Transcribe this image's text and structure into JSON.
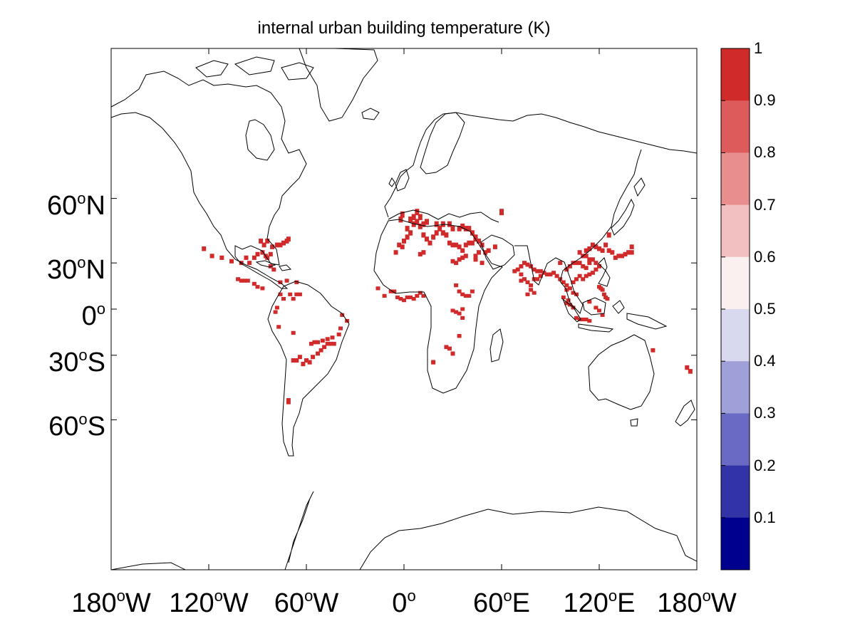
{
  "chart_data": {
    "type": "heatmap",
    "title": "internal urban building temperature (K)",
    "projection": "mercator",
    "xlim": [
      -180,
      180
    ],
    "ylim": [
      -80,
      80
    ],
    "y_ticks": [
      {
        "lat": 60,
        "num": "60",
        "sup": "o",
        "hemi": "N"
      },
      {
        "lat": 30,
        "num": "30",
        "sup": "o",
        "hemi": "N"
      },
      {
        "lat": 0,
        "num": "0",
        "sup": "o",
        "hemi": ""
      },
      {
        "lat": -30,
        "num": "30",
        "sup": "o",
        "hemi": "S"
      },
      {
        "lat": -60,
        "num": "60",
        "sup": "o",
        "hemi": "S"
      }
    ],
    "x_ticks": [
      {
        "lon": -180,
        "num": "180",
        "sup": "o",
        "hemi": "W"
      },
      {
        "lon": -120,
        "num": "120",
        "sup": "o",
        "hemi": "W"
      },
      {
        "lon": -60,
        "num": "60",
        "sup": "o",
        "hemi": "W"
      },
      {
        "lon": 0,
        "num": "0",
        "sup": "o",
        "hemi": ""
      },
      {
        "lon": 60,
        "num": "60",
        "sup": "o",
        "hemi": "E"
      },
      {
        "lon": 120,
        "num": "120",
        "sup": "o",
        "hemi": "E"
      },
      {
        "lon": 180,
        "num": "180",
        "sup": "o",
        "hemi": "W"
      }
    ],
    "colorbar": {
      "range": [
        0,
        1
      ],
      "tick_labels": [
        "1",
        "0.9",
        "0.8",
        "0.7",
        "0.6",
        "0.5",
        "0.4",
        "0.3",
        "0.2",
        "0.1"
      ],
      "tick_values": [
        1,
        0.9,
        0.8,
        0.7,
        0.6,
        0.5,
        0.4,
        0.3,
        0.2,
        0.1
      ],
      "colors_top_to_bottom": [
        "#d02a2a",
        "#dd5b5b",
        "#e88e8e",
        "#f2c0c0",
        "#fbf0f0",
        "#d8d8ee",
        "#a0a0d8",
        "#6a6ac4",
        "#3333a8",
        "#00008f"
      ]
    },
    "cell_value": 1,
    "cell_color": "#d02a2a",
    "coast_color": "#000000",
    "urban_cells_lonlat": [
      [
        -123,
        38
      ],
      [
        -118,
        34
      ],
      [
        -112,
        33
      ],
      [
        -106,
        31
      ],
      [
        -100,
        30
      ],
      [
        -97,
        33
      ],
      [
        -95,
        30
      ],
      [
        -92,
        33
      ],
      [
        -90,
        35
      ],
      [
        -87,
        36
      ],
      [
        -85,
        34
      ],
      [
        -84,
        33
      ],
      [
        -82,
        35
      ],
      [
        -81,
        39
      ],
      [
        -78,
        40
      ],
      [
        -76,
        40
      ],
      [
        -74,
        41
      ],
      [
        -72,
        42
      ],
      [
        -71,
        43
      ],
      [
        -88,
        42
      ],
      [
        -86,
        40
      ],
      [
        -84,
        42
      ],
      [
        -80,
        26
      ],
      [
        -82,
        28
      ],
      [
        -102,
        20
      ],
      [
        -100,
        19
      ],
      [
        -98,
        19
      ],
      [
        -96,
        19
      ],
      [
        -92,
        17
      ],
      [
        -90,
        15
      ],
      [
        -87,
        14
      ],
      [
        -76,
        18
      ],
      [
        -72,
        19
      ],
      [
        -66,
        18
      ],
      [
        -76,
        10
      ],
      [
        -74,
        7
      ],
      [
        -70,
        10
      ],
      [
        -66,
        10
      ],
      [
        -64,
        10
      ],
      [
        -68,
        7
      ],
      [
        -78,
        1
      ],
      [
        -79,
        -2
      ],
      [
        -77,
        -12
      ],
      [
        -68,
        -16
      ],
      [
        -57,
        -23
      ],
      [
        -55,
        -22
      ],
      [
        -53,
        -22
      ],
      [
        -50,
        -21
      ],
      [
        -47,
        -23
      ],
      [
        -45,
        -23
      ],
      [
        -43,
        -23
      ],
      [
        -49,
        -25
      ],
      [
        -51,
        -27
      ],
      [
        -53,
        -29
      ],
      [
        -56,
        -31
      ],
      [
        -58,
        -34
      ],
      [
        -60,
        -33
      ],
      [
        -62,
        -35
      ],
      [
        -64,
        -31
      ],
      [
        -66,
        -33
      ],
      [
        -68,
        -33
      ],
      [
        -47,
        -20
      ],
      [
        -44,
        -19
      ],
      [
        -40,
        -17
      ],
      [
        -39,
        -13
      ],
      [
        -35,
        -8
      ],
      [
        -38,
        -4
      ],
      [
        -71,
        -53
      ],
      [
        -5,
        36
      ],
      [
        -3,
        40
      ],
      [
        -1,
        39
      ],
      [
        0,
        42
      ],
      [
        2,
        44
      ],
      [
        2,
        48
      ],
      [
        4,
        46
      ],
      [
        6,
        50
      ],
      [
        8,
        51
      ],
      [
        10,
        49
      ],
      [
        12,
        50
      ],
      [
        14,
        51
      ],
      [
        10,
        53
      ],
      [
        6,
        53
      ],
      [
        8,
        55
      ],
      [
        4,
        52
      ],
      [
        -2,
        52
      ],
      [
        -1,
        54
      ],
      [
        12,
        45
      ],
      [
        14,
        43
      ],
      [
        16,
        41
      ],
      [
        18,
        44
      ],
      [
        20,
        46
      ],
      [
        22,
        48
      ],
      [
        24,
        46
      ],
      [
        26,
        45
      ],
      [
        28,
        41
      ],
      [
        30,
        40
      ],
      [
        32,
        40
      ],
      [
        34,
        39
      ],
      [
        36,
        37
      ],
      [
        38,
        40
      ],
      [
        40,
        41
      ],
      [
        42,
        41
      ],
      [
        44,
        43
      ],
      [
        20,
        50
      ],
      [
        24,
        50
      ],
      [
        28,
        50
      ],
      [
        30,
        48
      ],
      [
        34,
        48
      ],
      [
        36,
        49
      ],
      [
        38,
        48
      ],
      [
        40,
        48
      ],
      [
        42,
        46
      ],
      [
        44,
        44
      ],
      [
        46,
        42
      ],
      [
        48,
        40
      ],
      [
        46,
        36
      ],
      [
        44,
        34
      ],
      [
        50,
        36
      ],
      [
        52,
        37
      ],
      [
        56,
        39
      ],
      [
        30,
        31
      ],
      [
        32,
        30
      ],
      [
        34,
        32
      ],
      [
        36,
        33
      ],
      [
        38,
        34
      ],
      [
        44,
        32
      ],
      [
        48,
        30
      ],
      [
        60,
        55
      ],
      [
        10,
        35
      ],
      [
        12,
        36
      ],
      [
        -8,
        12
      ],
      [
        -6,
        12
      ],
      [
        -4,
        8
      ],
      [
        -2,
        7
      ],
      [
        0,
        6
      ],
      [
        2,
        8
      ],
      [
        4,
        8
      ],
      [
        6,
        7
      ],
      [
        8,
        9
      ],
      [
        10,
        11
      ],
      [
        12,
        9
      ],
      [
        -12,
        9
      ],
      [
        -16,
        14
      ],
      [
        32,
        16
      ],
      [
        34,
        12
      ],
      [
        36,
        10
      ],
      [
        38,
        9
      ],
      [
        40,
        9
      ],
      [
        42,
        12
      ],
      [
        30,
        -1
      ],
      [
        32,
        -2
      ],
      [
        34,
        -3
      ],
      [
        36,
        0
      ],
      [
        36,
        -6
      ],
      [
        34,
        -18
      ],
      [
        26,
        -25
      ],
      [
        28,
        -26
      ],
      [
        30,
        -29
      ],
      [
        18,
        -34
      ],
      [
        68,
        25
      ],
      [
        70,
        26
      ],
      [
        72,
        28
      ],
      [
        74,
        30
      ],
      [
        76,
        29
      ],
      [
        78,
        28
      ],
      [
        80,
        26
      ],
      [
        82,
        25
      ],
      [
        84,
        25
      ],
      [
        86,
        24
      ],
      [
        88,
        23
      ],
      [
        90,
        23
      ],
      [
        72,
        23
      ],
      [
        74,
        20
      ],
      [
        76,
        18
      ],
      [
        78,
        16
      ],
      [
        78,
        13
      ],
      [
        80,
        11
      ],
      [
        76,
        10
      ],
      [
        72,
        19
      ],
      [
        80,
        20
      ],
      [
        82,
        20
      ],
      [
        84,
        22
      ],
      [
        92,
        24
      ],
      [
        94,
        22
      ],
      [
        96,
        20
      ],
      [
        98,
        18
      ],
      [
        100,
        16
      ],
      [
        102,
        14
      ],
      [
        104,
        11
      ],
      [
        106,
        10
      ],
      [
        100,
        13
      ],
      [
        104,
        18
      ],
      [
        106,
        20
      ],
      [
        108,
        22
      ],
      [
        110,
        20
      ],
      [
        112,
        22
      ],
      [
        114,
        23
      ],
      [
        116,
        24
      ],
      [
        118,
        26
      ],
      [
        120,
        28
      ],
      [
        118,
        30
      ],
      [
        116,
        32
      ],
      [
        114,
        32
      ],
      [
        112,
        34
      ],
      [
        110,
        34
      ],
      [
        108,
        30
      ],
      [
        106,
        30
      ],
      [
        104,
        30
      ],
      [
        102,
        28
      ],
      [
        100,
        26
      ],
      [
        108,
        36
      ],
      [
        112,
        37
      ],
      [
        114,
        38
      ],
      [
        116,
        40
      ],
      [
        118,
        39
      ],
      [
        120,
        38
      ],
      [
        122,
        37
      ],
      [
        114,
        30
      ],
      [
        110,
        28
      ],
      [
        112,
        27
      ],
      [
        96,
        30
      ],
      [
        124,
        40
      ],
      [
        126,
        37
      ],
      [
        128,
        36
      ],
      [
        130,
        33
      ],
      [
        132,
        34
      ],
      [
        134,
        34
      ],
      [
        136,
        35
      ],
      [
        138,
        36
      ],
      [
        140,
        36
      ],
      [
        140,
        39
      ],
      [
        126,
        45
      ],
      [
        102,
        3
      ],
      [
        104,
        1
      ],
      [
        100,
        4
      ],
      [
        101,
        6
      ],
      [
        98,
        8
      ],
      [
        106,
        -6
      ],
      [
        108,
        -7
      ],
      [
        110,
        -7
      ],
      [
        112,
        -7
      ],
      [
        114,
        -8
      ],
      [
        120,
        15
      ],
      [
        121,
        14
      ],
      [
        122,
        13
      ],
      [
        123,
        10
      ],
      [
        124,
        8
      ],
      [
        125,
        7
      ],
      [
        120,
        -1
      ],
      [
        118,
        1
      ],
      [
        114,
        5
      ],
      [
        122,
        -4
      ],
      [
        153,
        -27
      ],
      [
        174,
        -37
      ],
      [
        176,
        -39
      ]
    ]
  }
}
